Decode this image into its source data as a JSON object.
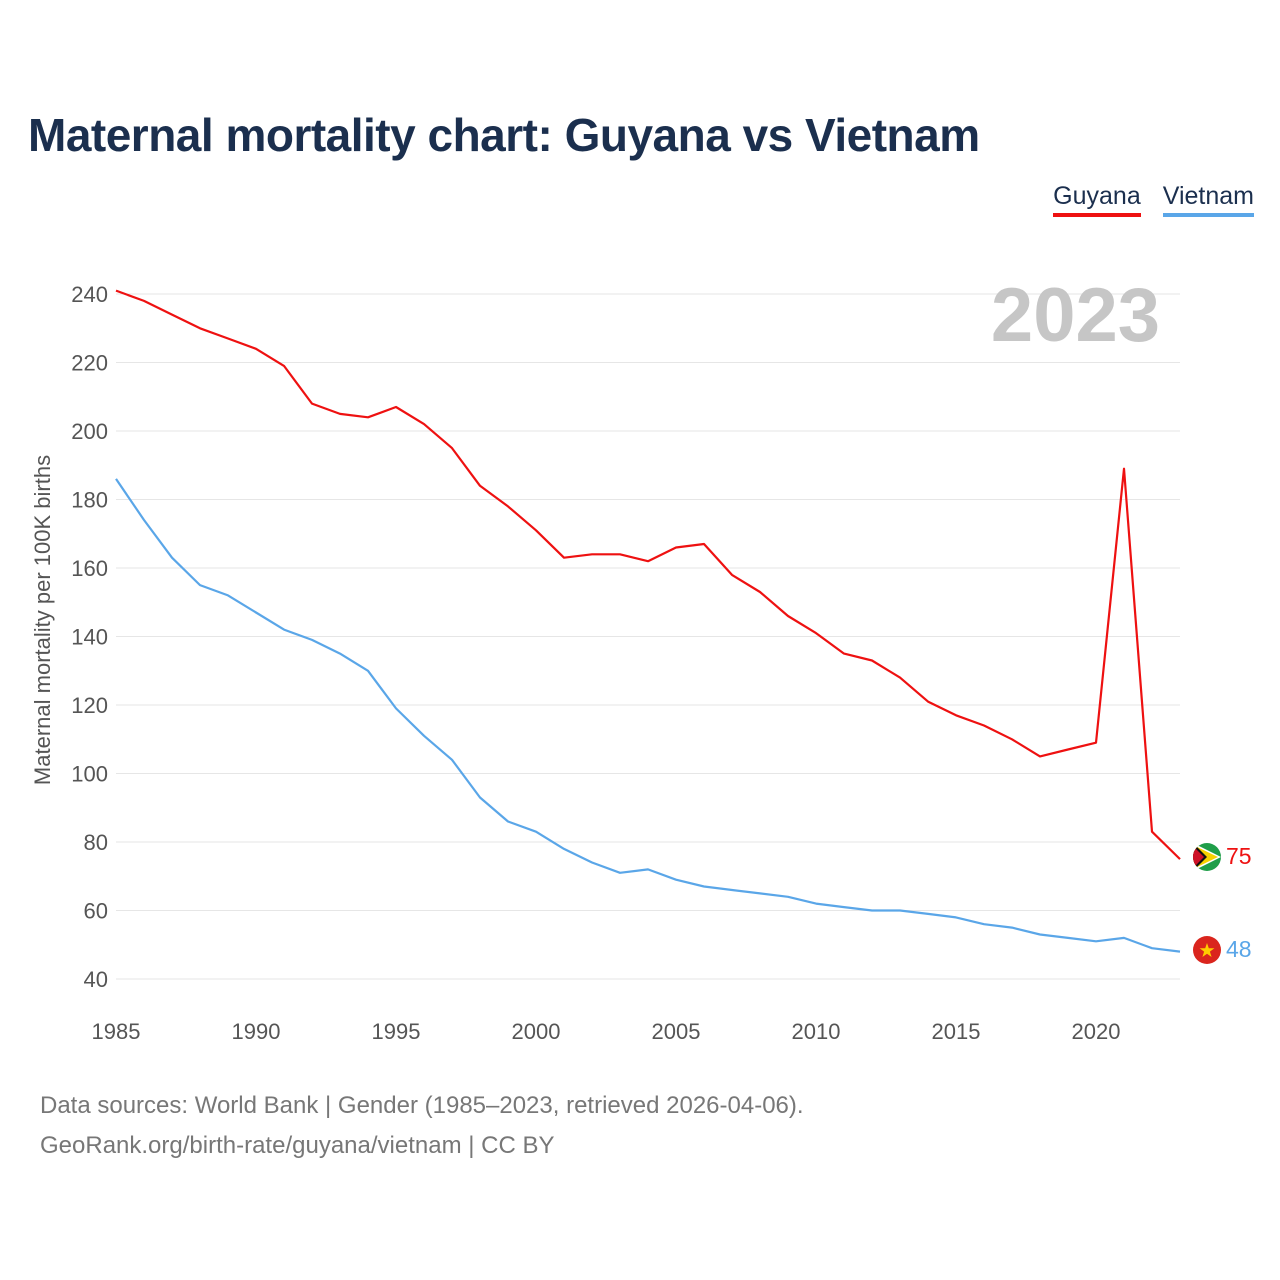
{
  "title": "Maternal mortality chart: Guyana vs Vietnam",
  "legend": [
    "Guyana",
    "Vietnam"
  ],
  "year_label": "2023",
  "source_line1": "Data sources: World Bank | Gender (1985–2023, retrieved 2026-04-06).",
  "source_line2": "GeoRank.org/birth-rate/guyana/vietnam | CC BY",
  "colors": {
    "guyana": "#ee1111",
    "vietnam": "#5aa6e8",
    "grid": "#e6e6e6",
    "title": "#1b2f4e"
  },
  "chart_data": {
    "type": "line",
    "title": "Maternal mortality chart: Guyana vs Vietnam",
    "xlabel": "",
    "ylabel": "Maternal mortality per 100K births",
    "xlim": [
      1985,
      2023
    ],
    "ylim": [
      40,
      240
    ],
    "yticks": [
      40,
      60,
      80,
      100,
      120,
      140,
      160,
      180,
      200,
      220,
      240
    ],
    "xticks": [
      1985,
      1990,
      1995,
      2000,
      2005,
      2010,
      2015,
      2020
    ],
    "grid": true,
    "legend_position": "top-right",
    "x": [
      1985,
      1986,
      1987,
      1988,
      1989,
      1990,
      1991,
      1992,
      1993,
      1994,
      1995,
      1996,
      1997,
      1998,
      1999,
      2000,
      2001,
      2002,
      2003,
      2004,
      2005,
      2006,
      2007,
      2008,
      2009,
      2010,
      2011,
      2012,
      2013,
      2014,
      2015,
      2016,
      2017,
      2018,
      2019,
      2020,
      2021,
      2022,
      2023
    ],
    "series": [
      {
        "name": "Guyana",
        "end_label": "75",
        "values": [
          241,
          238,
          234,
          230,
          227,
          224,
          219,
          208,
          205,
          204,
          207,
          202,
          195,
          184,
          178,
          171,
          163,
          164,
          164,
          162,
          166,
          167,
          158,
          153,
          146,
          141,
          135,
          133,
          128,
          121,
          117,
          114,
          110,
          105,
          107,
          109,
          189,
          83,
          75
        ]
      },
      {
        "name": "Vietnam",
        "end_label": "48",
        "values": [
          186,
          174,
          163,
          155,
          152,
          147,
          142,
          139,
          135,
          130,
          119,
          111,
          104,
          93,
          86,
          83,
          78,
          74,
          71,
          72,
          69,
          67,
          66,
          65,
          64,
          62,
          61,
          60,
          60,
          59,
          58,
          56,
          55,
          53,
          52,
          51,
          52,
          49,
          48
        ]
      }
    ]
  }
}
